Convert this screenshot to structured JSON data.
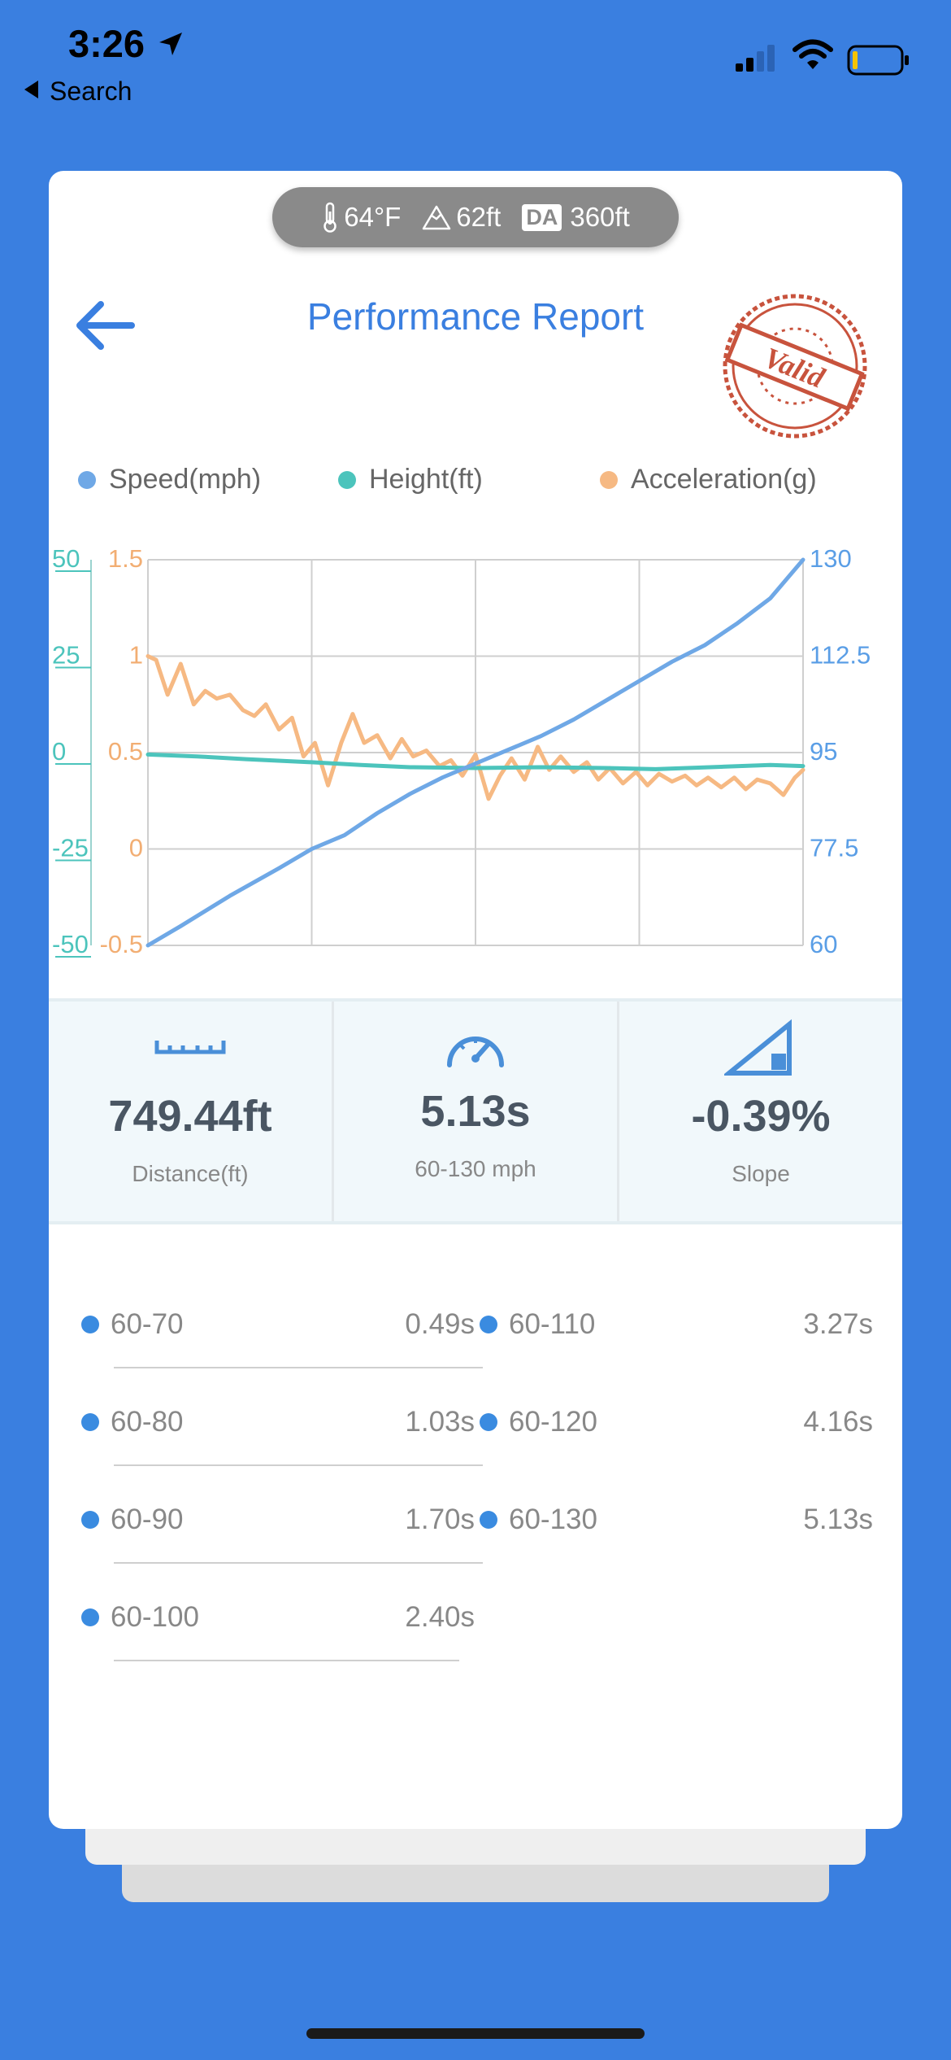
{
  "status_bar": {
    "time": "3:26",
    "back_label": "Search"
  },
  "conditions": {
    "temperature": "64°F",
    "elevation": "62ft",
    "da_badge": "DA",
    "density_altitude": "360ft"
  },
  "header": {
    "title": "Performance Report",
    "stamp_text": "Valid"
  },
  "legend": {
    "speed": "Speed(mph)",
    "height": "Height(ft)",
    "acceleration": "Acceleration(g)"
  },
  "colors": {
    "speed": "#6fa8e6",
    "height": "#4cc4bc",
    "acceleration": "#f6b983",
    "accent": "#3a7fe0",
    "stamp": "#c8533d"
  },
  "chart_data": {
    "type": "line",
    "x_ticks": [
      "",
      "",
      "",
      "",
      ""
    ],
    "axes": {
      "height": {
        "ticks": [
          "50",
          "25",
          "0",
          "-25",
          "-50"
        ],
        "range": [
          -50,
          50
        ]
      },
      "acceleration": {
        "ticks": [
          "1.5",
          "1",
          "0.5",
          "0",
          "-0.5"
        ],
        "range": [
          -0.5,
          1.5
        ]
      },
      "speed": {
        "ticks": [
          "130",
          "112.5",
          "95",
          "77.5",
          "60"
        ],
        "range": [
          60,
          130
        ]
      }
    },
    "grid": true,
    "x_range": [
      0,
      4
    ],
    "series": [
      {
        "name": "Speed(mph)",
        "axis": "speed",
        "x": [
          0,
          0.2,
          0.5,
          0.8,
          1.0,
          1.2,
          1.4,
          1.6,
          1.8,
          2.0,
          2.2,
          2.4,
          2.6,
          2.8,
          3.0,
          3.2,
          3.4,
          3.6,
          3.8,
          4.0
        ],
        "y": [
          60,
          63.5,
          69,
          74,
          77.5,
          80,
          84,
          87.5,
          90.5,
          93,
          95.5,
          98,
          101,
          104.5,
          108,
          111.5,
          114.5,
          118.5,
          123,
          130
        ]
      },
      {
        "name": "Height(ft)",
        "axis": "height",
        "x": [
          0,
          0.3,
          0.6,
          1.0,
          1.3,
          1.6,
          2.0,
          2.4,
          2.8,
          3.1,
          3.5,
          3.8,
          4.0
        ],
        "y": [
          -0.5,
          -1,
          -1.7,
          -2.5,
          -3.2,
          -3.8,
          -4,
          -3.8,
          -4,
          -4.3,
          -3.7,
          -3.2,
          -3.5
        ]
      },
      {
        "name": "Acceleration(g)",
        "axis": "acceleration",
        "x": [
          0,
          0.05,
          0.12,
          0.2,
          0.28,
          0.35,
          0.42,
          0.5,
          0.58,
          0.65,
          0.72,
          0.8,
          0.88,
          0.95,
          1.02,
          1.1,
          1.18,
          1.25,
          1.32,
          1.4,
          1.48,
          1.55,
          1.62,
          1.7,
          1.78,
          1.85,
          1.92,
          2.0,
          2.08,
          2.15,
          2.22,
          2.3,
          2.38,
          2.45,
          2.52,
          2.6,
          2.68,
          2.75,
          2.82,
          2.9,
          2.98,
          3.05,
          3.12,
          3.2,
          3.28,
          3.35,
          3.42,
          3.5,
          3.58,
          3.65,
          3.72,
          3.8,
          3.88,
          3.95,
          4.0
        ],
        "y": [
          1.0,
          0.98,
          0.8,
          0.96,
          0.75,
          0.82,
          0.78,
          0.8,
          0.72,
          0.69,
          0.75,
          0.62,
          0.68,
          0.48,
          0.55,
          0.33,
          0.55,
          0.7,
          0.55,
          0.59,
          0.47,
          0.57,
          0.48,
          0.51,
          0.43,
          0.46,
          0.38,
          0.49,
          0.26,
          0.38,
          0.47,
          0.36,
          0.53,
          0.41,
          0.48,
          0.4,
          0.45,
          0.36,
          0.42,
          0.34,
          0.4,
          0.33,
          0.39,
          0.35,
          0.38,
          0.33,
          0.37,
          0.32,
          0.37,
          0.31,
          0.36,
          0.34,
          0.28,
          0.37,
          0.41
        ]
      }
    ]
  },
  "stats": {
    "distance_value": "749.44ft",
    "distance_label": "Distance(ft)",
    "time_value": "5.13s",
    "time_label": "60-130 mph",
    "slope_value": "-0.39%",
    "slope_label": "Slope"
  },
  "splits": [
    {
      "range": "60-70",
      "time": "0.49s"
    },
    {
      "range": "60-80",
      "time": "1.03s"
    },
    {
      "range": "60-90",
      "time": "1.70s"
    },
    {
      "range": "60-100",
      "time": "2.40s"
    },
    {
      "range": "60-110",
      "time": "3.27s"
    },
    {
      "range": "60-120",
      "time": "4.16s"
    },
    {
      "range": "60-130",
      "time": "5.13s"
    }
  ]
}
